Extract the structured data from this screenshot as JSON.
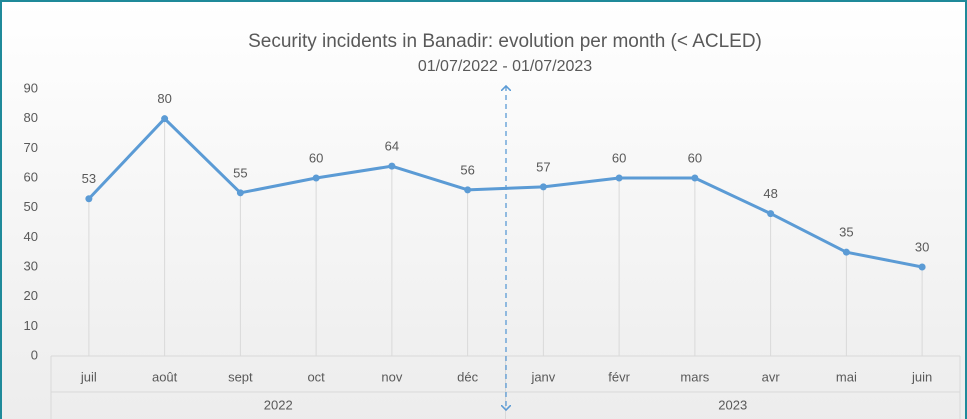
{
  "chart_data": {
    "type": "line",
    "title": "Security  incidents  in Banadir:  evolution  per  month  (< ACLED)",
    "subtitle": "01/07/2022 - 01/07/2023",
    "categories": [
      "juil",
      "août",
      "sept",
      "oct",
      "nov",
      "déc",
      "janv",
      "févr",
      "mars",
      "avr",
      "mai",
      "juin"
    ],
    "groups": [
      {
        "name": "2022",
        "count": 6
      },
      {
        "name": "2023",
        "count": 6
      }
    ],
    "series": [
      {
        "name": "Security incidents",
        "color": "#5b9bd5",
        "values": [
          53,
          80,
          55,
          60,
          64,
          56,
          57,
          60,
          60,
          48,
          35,
          30
        ]
      }
    ],
    "ylim": [
      0,
      90
    ],
    "yticks": [
      0,
      10,
      20,
      30,
      40,
      50,
      60,
      70,
      80,
      90
    ],
    "grid": false,
    "drop_lines": true,
    "data_labels": true
  }
}
